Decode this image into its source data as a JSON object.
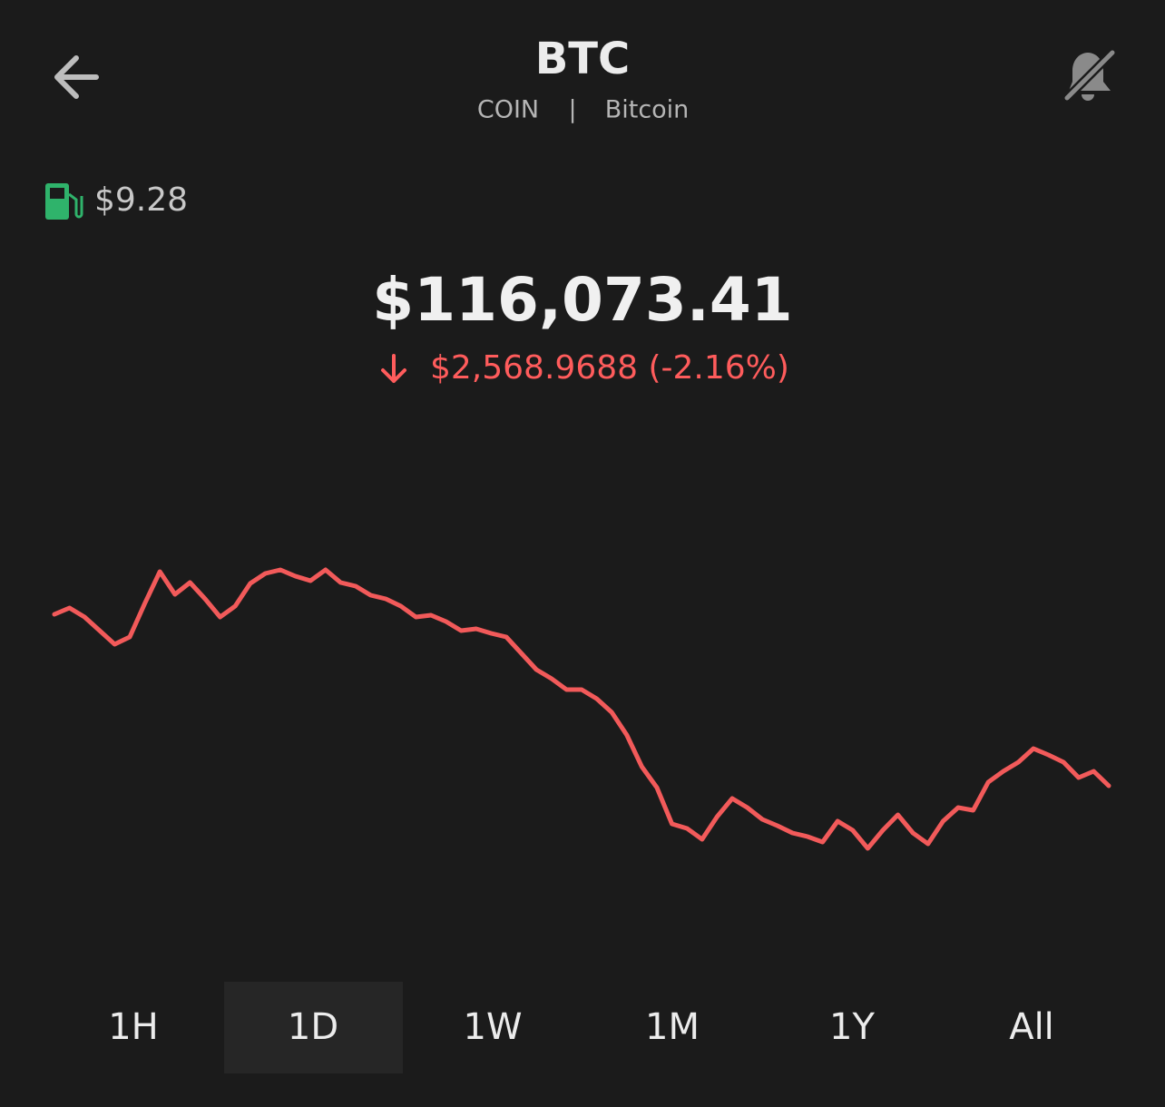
{
  "header": {
    "title": "BTC",
    "symbol": "COIN",
    "divider": "|",
    "name": "Bitcoin"
  },
  "gas": {
    "label": "$9.28"
  },
  "price": {
    "value": "$116,073.41",
    "change": "$2,568.9688 (-2.16%)"
  },
  "chart_data": {
    "type": "line",
    "color": "#f25a5a",
    "values": [
      118642,
      118737,
      118601,
      118397,
      118194,
      118302,
      118805,
      119281,
      118941,
      119118,
      118873,
      118601,
      118764,
      119104,
      119254,
      119308,
      119213,
      119145,
      119308,
      119118,
      119063,
      118927,
      118873,
      118764,
      118601,
      118628,
      118533,
      118397,
      118424,
      118357,
      118302,
      118058,
      117813,
      117678,
      117514,
      117514,
      117378,
      117174,
      116835,
      116359,
      116046,
      115503,
      115435,
      115272,
      115612,
      115883,
      115748,
      115571,
      115476,
      115367,
      115313,
      115231,
      115544,
      115408,
      115136,
      115408,
      115639,
      115367,
      115204,
      115544,
      115748,
      115707,
      116128,
      116291,
      116427,
      116631,
      116536,
      116427,
      116196,
      116291,
      116073.41
    ]
  },
  "tabs": [
    "1H",
    "1D",
    "1W",
    "1M",
    "1Y",
    "All"
  ],
  "selected_tab": 1
}
